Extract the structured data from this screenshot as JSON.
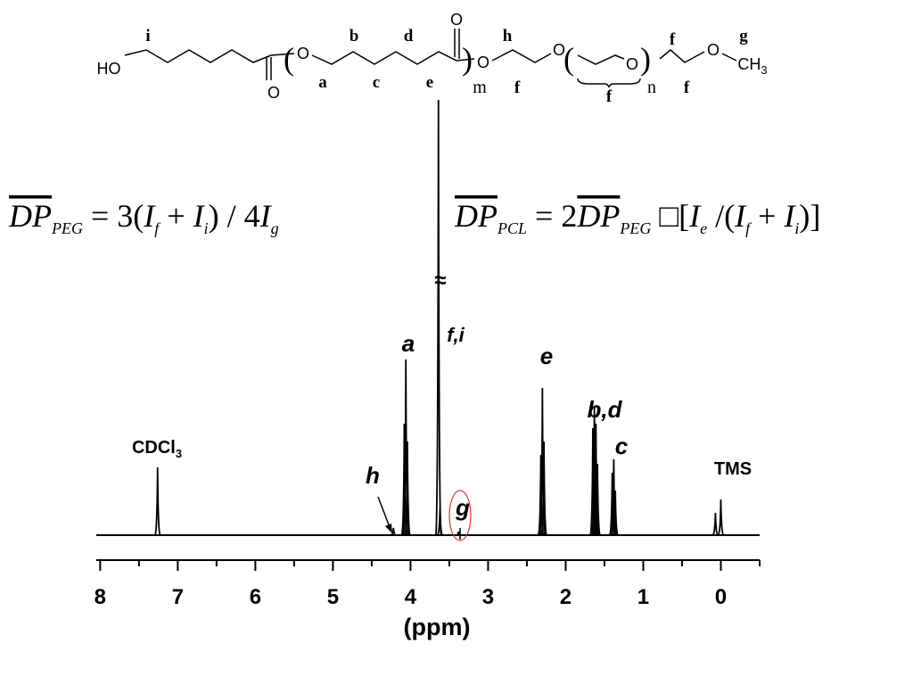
{
  "structure": {
    "groups": [
      "HO",
      "O",
      "O",
      "O",
      "O",
      "O",
      "O",
      "O"
    ],
    "methyl": {
      "text": "CH",
      "sub": "3"
    },
    "letters": [
      "i",
      "b",
      "d",
      "h",
      "g",
      "a",
      "c",
      "e",
      "f",
      "f",
      "f",
      "f"
    ],
    "repeats": [
      "m",
      "n"
    ]
  },
  "formulas": [
    [
      {
        "t": "DP",
        "s": "over"
      },
      {
        "t": "PEG",
        "s": "sub"
      },
      {
        "t": " = 3(",
        "s": "n"
      },
      {
        "t": "I",
        "s": "i"
      },
      {
        "t": "f",
        "s": "sub"
      },
      {
        "t": " + ",
        "s": "n"
      },
      {
        "t": "I",
        "s": "i"
      },
      {
        "t": "i",
        "s": "sub"
      },
      {
        "t": ") / 4",
        "s": "n"
      },
      {
        "t": "I",
        "s": "i"
      },
      {
        "t": "g",
        "s": "sub"
      }
    ],
    [
      {
        "t": "DP",
        "s": "over"
      },
      {
        "t": "PCL",
        "s": "sub"
      },
      {
        "t": " = 2",
        "s": "n"
      },
      {
        "t": "DP",
        "s": "over"
      },
      {
        "t": "PEG",
        "s": "sub"
      },
      {
        "t": " □[",
        "s": "n"
      },
      {
        "t": "I",
        "s": "i"
      },
      {
        "t": "e",
        "s": "sub"
      },
      {
        "t": " /(",
        "s": "n"
      },
      {
        "t": "I",
        "s": "i"
      },
      {
        "t": "f",
        "s": "sub"
      },
      {
        "t": " + ",
        "s": "n"
      },
      {
        "t": "I",
        "s": "i"
      },
      {
        "t": "i",
        "s": "sub"
      },
      {
        "t": ")]",
        "s": "n"
      }
    ]
  ],
  "chart_data": {
    "type": "spectrum",
    "x_label": "(ppm)",
    "xlim": [
      8.05,
      -0.5
    ],
    "xticks": [
      8,
      7,
      6,
      5,
      4,
      3,
      2,
      1,
      0
    ],
    "xminorticks": [
      7.5,
      6.5,
      5.5,
      4.5,
      3.5,
      2.5,
      1.5,
      0.5,
      -0.5
    ],
    "ylim": [
      0,
      500
    ],
    "color": "#000000",
    "x": [
      7.26,
      4.22,
      4.08,
      4.06,
      4.04,
      3.64,
      3.62,
      3.38,
      2.32,
      2.3,
      2.28,
      1.65,
      1.63,
      1.61,
      1.59,
      1.4,
      1.38,
      1.36,
      0.07,
      0.0
    ],
    "values": [
      76,
      8,
      125,
      197,
      105,
      488,
      30,
      4,
      90,
      165,
      105,
      120,
      145,
      125,
      80,
      70,
      85,
      50,
      25,
      40
    ],
    "peak_labels": [
      {
        "text": "CDCl",
        "sub": "3"
      },
      {
        "text": "h"
      },
      {
        "text": "a"
      },
      {
        "text": "f,i"
      },
      {
        "text": "g"
      },
      {
        "text": "e"
      },
      {
        "text": "b,d"
      },
      {
        "text": "c"
      },
      {
        "text": "TMS"
      }
    ],
    "break_mark": "≈"
  }
}
